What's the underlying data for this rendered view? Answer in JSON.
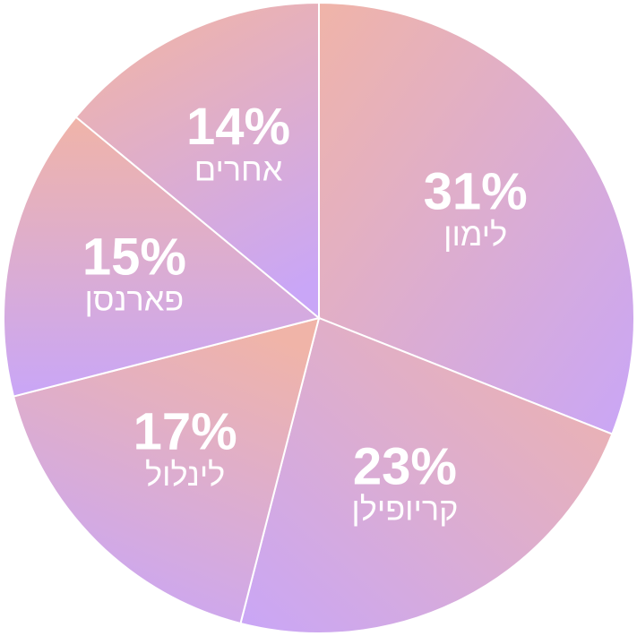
{
  "chart_data": {
    "type": "pie",
    "categories": [
      "לימון",
      "קריופילן",
      "לינלול",
      "פארנסן",
      "אחרים"
    ],
    "values": [
      31,
      23,
      17,
      15,
      14
    ],
    "value_labels": [
      "31%",
      "23%",
      "17%",
      "15%",
      "14%"
    ],
    "gradient": [
      "#f0b4a8",
      "#c9a6f7"
    ]
  }
}
